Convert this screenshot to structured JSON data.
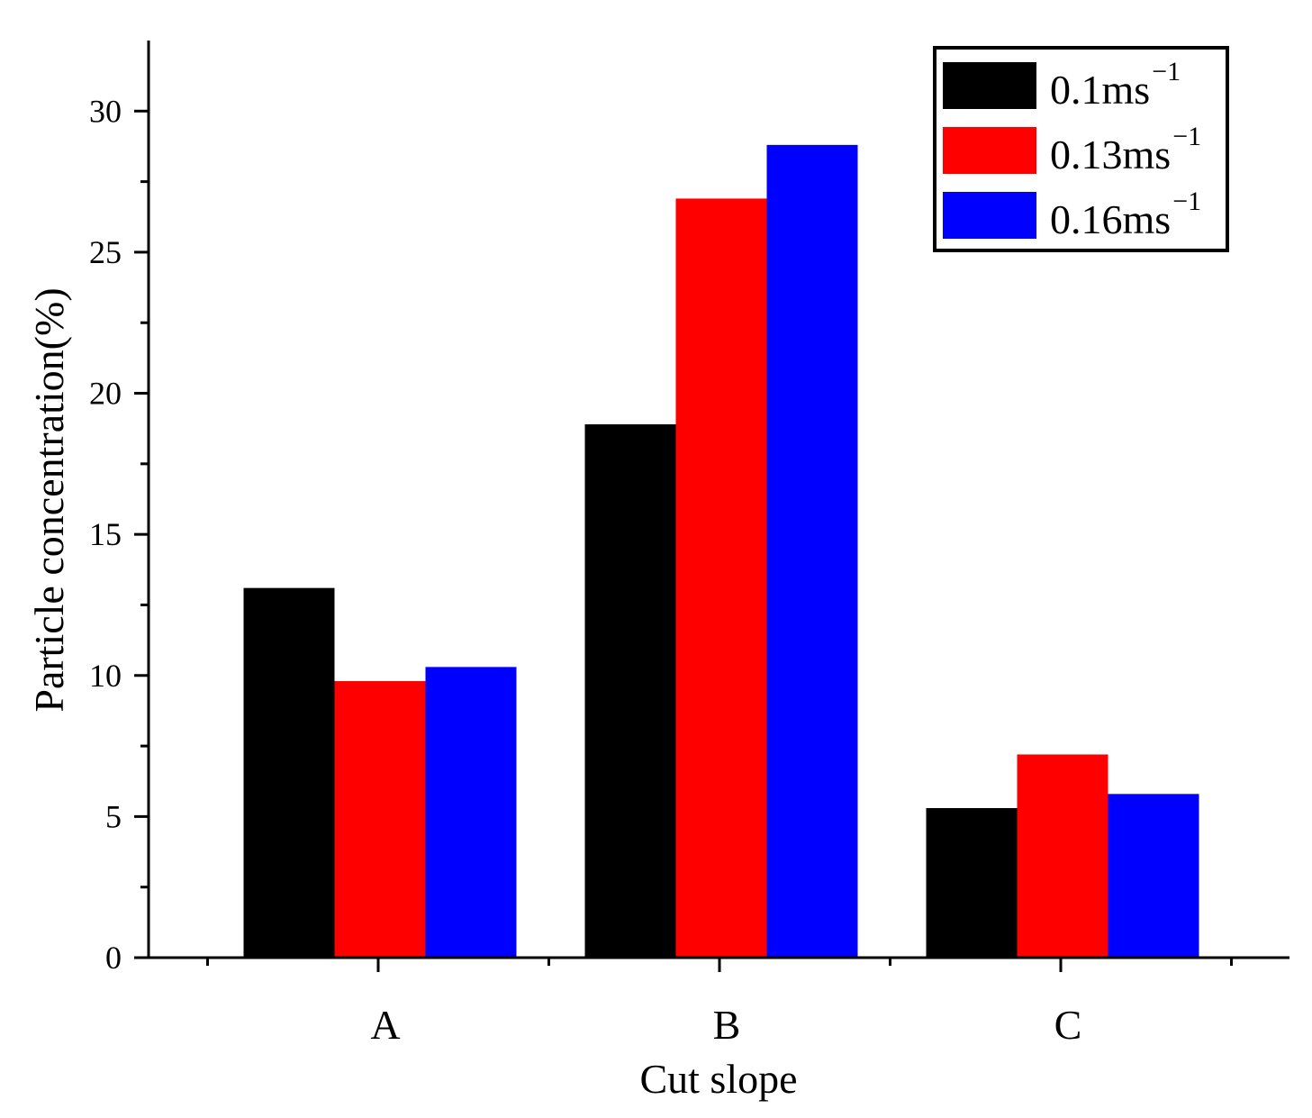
{
  "chart_data": {
    "type": "bar",
    "title": "",
    "xlabel": "Cut slope",
    "ylabel": "Particle concentration(%)",
    "categories": [
      "A",
      "B",
      "C"
    ],
    "ylim": [
      0,
      32.5
    ],
    "yticks": [
      0,
      5,
      10,
      15,
      20,
      25,
      30
    ],
    "legend_position": "top-right",
    "series": [
      {
        "name": "0.1ms",
        "unit_sup": "−1",
        "color": "#000000",
        "values": [
          13.1,
          18.9,
          5.3
        ]
      },
      {
        "name": "0.13ms",
        "unit_sup": "−1",
        "color": "#ff0000",
        "values": [
          9.8,
          26.9,
          7.2
        ]
      },
      {
        "name": "0.16ms",
        "unit_sup": "−1",
        "color": "#0000ff",
        "values": [
          10.3,
          28.8,
          5.8
        ]
      }
    ]
  }
}
